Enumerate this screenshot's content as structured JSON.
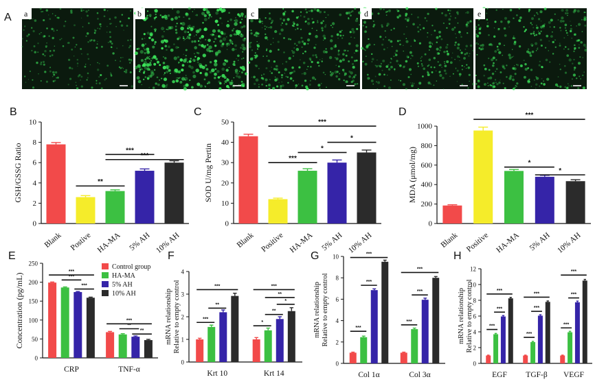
{
  "colors": {
    "red": "#f24a4a",
    "yellow": "#f5ec2a",
    "green": "#3cc042",
    "blue": "#3524a8",
    "black": "#2b2b2b",
    "microscopy_bg": "#0b1a0e",
    "microscopy_spot": "#3ce65a"
  },
  "panel_letters": {
    "A": "A",
    "B": "B",
    "C": "C",
    "D": "D",
    "E": "E",
    "F": "F",
    "G": "G",
    "H": "H"
  },
  "microscopy": {
    "labels": [
      "a",
      "b",
      "c",
      "d",
      "e"
    ],
    "brightness": [
      0.25,
      0.85,
      0.55,
      0.45,
      0.5
    ]
  },
  "chart_data": [
    {
      "id": "B",
      "type": "bar",
      "categories": [
        "Blank",
        "Postive",
        "HA-MA",
        "5% AH",
        "10% AH"
      ],
      "values": [
        7.8,
        2.6,
        3.2,
        5.2,
        6.0
      ],
      "errors": [
        0.18,
        0.15,
        0.12,
        0.18,
        0.18
      ],
      "colors": [
        "red",
        "yellow",
        "green",
        "blue",
        "black"
      ],
      "ylabel": "GSH/GSSG Ratio",
      "ylim": [
        0,
        10
      ],
      "yticks": [
        0,
        2,
        4,
        6,
        8,
        10
      ],
      "significance": [
        {
          "from": 1,
          "to": 2,
          "y": 3.7,
          "label": "**"
        },
        {
          "from": 2,
          "to": 4,
          "y": 6.3,
          "label": "***"
        },
        {
          "from": 2,
          "to": 3,
          "y": 6.8,
          "label": "***"
        }
      ]
    },
    {
      "id": "C",
      "type": "bar",
      "categories": [
        "Blank",
        "Positive",
        "HA-MA",
        "5% AH",
        "10% AH"
      ],
      "values": [
        43,
        12,
        26,
        30,
        35
      ],
      "errors": [
        1.0,
        0.5,
        1.0,
        1.3,
        1.2
      ],
      "colors": [
        "red",
        "yellow",
        "green",
        "blue",
        "black"
      ],
      "ylabel": "SOD U/mg Pertin",
      "ylim": [
        0,
        50
      ],
      "yticks": [
        0,
        10,
        20,
        30,
        40,
        50
      ],
      "significance": [
        {
          "from": 1,
          "to": 2,
          "y": 30,
          "label": "***"
        },
        {
          "from": 2,
          "to": 3,
          "y": 35,
          "label": "*"
        },
        {
          "from": 3,
          "to": 4,
          "y": 40,
          "label": "*"
        },
        {
          "from": 1,
          "to": 4,
          "y": 48,
          "label": "***"
        }
      ]
    },
    {
      "id": "D",
      "type": "bar",
      "categories": [
        "Blank",
        "Positive",
        "HA-MA",
        "5% AH",
        "10% AH"
      ],
      "values": [
        185,
        955,
        540,
        480,
        435
      ],
      "errors": [
        8,
        35,
        15,
        15,
        15
      ],
      "colors": [
        "red",
        "yellow",
        "green",
        "blue",
        "black"
      ],
      "ylabel": "MDA (μmol/mg)",
      "ylim": [
        0,
        1000
      ],
      "yticks": [
        0,
        200,
        400,
        600,
        800,
        1000
      ],
      "significance": [
        {
          "from": 2,
          "to": 3,
          "y": 580,
          "label": "*"
        },
        {
          "from": 3,
          "to": 4,
          "y": 500,
          "label": "*"
        },
        {
          "from": 1,
          "to": 4,
          "y": 1070,
          "label": "***"
        }
      ]
    },
    {
      "id": "E",
      "type": "bar",
      "categories": [
        "CRP",
        "TNF-α"
      ],
      "series": [
        {
          "name": "Control group",
          "color": "red",
          "values": [
            199,
            68
          ],
          "errors": [
            1.5,
            2
          ]
        },
        {
          "name": "HA-MA",
          "color": "green",
          "values": [
            186,
            62
          ],
          "errors": [
            1.5,
            2
          ]
        },
        {
          "name": "5% AH",
          "color": "blue",
          "values": [
            174,
            56
          ],
          "errors": [
            1.5,
            2
          ]
        },
        {
          "name": "10% AH",
          "color": "black",
          "values": [
            159,
            47
          ],
          "errors": [
            1.5,
            2
          ]
        }
      ],
      "ylabel": "Concentration (pg/mL)",
      "ylim": [
        0,
        250
      ],
      "yticks": [
        0,
        50,
        100,
        150,
        200,
        250
      ],
      "significance": [
        {
          "group": 0,
          "from": 0,
          "to": 3,
          "y": 219,
          "label": "***"
        },
        {
          "group": 0,
          "from": 1,
          "to": 2,
          "y": 206,
          "label": "***"
        },
        {
          "group": 0,
          "from": 2,
          "to": 3,
          "y": 182,
          "label": "***"
        },
        {
          "group": 1,
          "from": 0,
          "to": 3,
          "y": 90,
          "label": "***"
        },
        {
          "group": 1,
          "from": 1,
          "to": 2,
          "y": 77,
          "label": "**"
        },
        {
          "group": 1,
          "from": 2,
          "to": 3,
          "y": 63,
          "label": "**"
        }
      ]
    },
    {
      "id": "F",
      "type": "bar",
      "categories": [
        "Krt 10",
        "Krt 14"
      ],
      "series": [
        {
          "name": "Control group",
          "color": "red",
          "values": [
            1.0,
            1.0
          ],
          "errors": [
            0.05,
            0.08
          ]
        },
        {
          "name": "HA-MA",
          "color": "green",
          "values": [
            1.55,
            1.4
          ],
          "errors": [
            0.08,
            0.1
          ]
        },
        {
          "name": "5% AH",
          "color": "blue",
          "values": [
            2.2,
            1.9
          ],
          "errors": [
            0.1,
            0.1
          ]
        },
        {
          "name": "10% AH",
          "color": "black",
          "values": [
            2.92,
            2.25
          ],
          "errors": [
            0.12,
            0.15
          ]
        }
      ],
      "ylabel": [
        "mRNA relationship",
        "Relative to empty control"
      ],
      "ylim": [
        0,
        4
      ],
      "yticks": [
        0,
        1,
        2,
        3,
        4
      ],
      "significance": [
        {
          "group": 0,
          "from": 0,
          "to": 1,
          "y": 1.75,
          "label": "***"
        },
        {
          "group": 0,
          "from": 1,
          "to": 2,
          "y": 2.38,
          "label": "**"
        },
        {
          "group": 0,
          "from": 0,
          "to": 3,
          "y": 3.2,
          "label": "***"
        },
        {
          "group": 1,
          "from": 0,
          "to": 1,
          "y": 1.6,
          "label": "*"
        },
        {
          "group": 1,
          "from": 1,
          "to": 2,
          "y": 2.1,
          "label": "**"
        },
        {
          "group": 1,
          "from": 2,
          "to": 3,
          "y": 2.55,
          "label": "*"
        },
        {
          "group": 1,
          "from": 1,
          "to": 3,
          "y": 2.85,
          "label": "**"
        },
        {
          "group": 1,
          "from": 0,
          "to": 3,
          "y": 3.2,
          "label": "***"
        }
      ]
    },
    {
      "id": "G",
      "type": "bar",
      "categories": [
        "Col 1α",
        "Col 3α"
      ],
      "series": [
        {
          "name": "Control group",
          "color": "red",
          "values": [
            1.0,
            1.0
          ],
          "errors": [
            0.05,
            0.05
          ]
        },
        {
          "name": "HA-MA",
          "color": "green",
          "values": [
            2.45,
            3.2
          ],
          "errors": [
            0.1,
            0.1
          ]
        },
        {
          "name": "5% AH",
          "color": "blue",
          "values": [
            6.85,
            5.95
          ],
          "errors": [
            0.12,
            0.15
          ]
        },
        {
          "name": "10% AH",
          "color": "black",
          "values": [
            9.5,
            8.0
          ],
          "errors": [
            0.15,
            0.12
          ]
        }
      ],
      "ylabel": [
        "mRNA relationship",
        "Relative to empty control"
      ],
      "ylim": [
        0,
        10
      ],
      "yticks": [
        0,
        2,
        4,
        6,
        8,
        10
      ],
      "significance": [
        {
          "group": 0,
          "from": 0,
          "to": 1,
          "y": 3.0,
          "label": "***"
        },
        {
          "group": 0,
          "from": 1,
          "to": 2,
          "y": 7.3,
          "label": "***"
        },
        {
          "group": 0,
          "from": 0,
          "to": 3,
          "y": 9.9,
          "label": "***"
        },
        {
          "group": 1,
          "from": 0,
          "to": 1,
          "y": 3.6,
          "label": "***"
        },
        {
          "group": 1,
          "from": 1,
          "to": 2,
          "y": 6.4,
          "label": "***"
        },
        {
          "group": 1,
          "from": 0,
          "to": 3,
          "y": 8.5,
          "label": "***"
        }
      ]
    },
    {
      "id": "H",
      "type": "bar",
      "categories": [
        "EGF",
        "TGF-β",
        "VEGF"
      ],
      "series": [
        {
          "name": "Control group",
          "color": "red",
          "values": [
            1.0,
            1.0,
            1.0
          ],
          "errors": [
            0.05,
            0.05,
            0.05
          ]
        },
        {
          "name": "HA-MA",
          "color": "green",
          "values": [
            3.7,
            2.7,
            3.95
          ],
          "errors": [
            0.1,
            0.1,
            0.12
          ]
        },
        {
          "name": "5% AH",
          "color": "blue",
          "values": [
            5.95,
            6.05,
            7.75
          ],
          "errors": [
            0.12,
            0.12,
            0.15
          ]
        },
        {
          "name": "10% AH",
          "color": "black",
          "values": [
            8.25,
            7.8,
            10.5
          ],
          "errors": [
            0.12,
            0.12,
            0.15
          ]
        }
      ],
      "ylabel": [
        "mRNA relationship",
        "Relative to empty control"
      ],
      "ylim": [
        0,
        12
      ],
      "yticks": [
        0,
        2,
        4,
        6,
        8,
        10,
        12
      ],
      "significance": [
        {
          "group": 0,
          "from": 0,
          "to": 1,
          "y": 4.3,
          "label": "***"
        },
        {
          "group": 0,
          "from": 1,
          "to": 2,
          "y": 6.5,
          "label": "***"
        },
        {
          "group": 0,
          "from": 0,
          "to": 3,
          "y": 8.8,
          "label": "***"
        },
        {
          "group": 1,
          "from": 0,
          "to": 1,
          "y": 3.3,
          "label": "***"
        },
        {
          "group": 1,
          "from": 1,
          "to": 2,
          "y": 6.6,
          "label": "***"
        },
        {
          "group": 1,
          "from": 0,
          "to": 3,
          "y": 8.4,
          "label": "***"
        },
        {
          "group": 2,
          "from": 0,
          "to": 1,
          "y": 4.5,
          "label": "***"
        },
        {
          "group": 2,
          "from": 1,
          "to": 2,
          "y": 8.3,
          "label": "***"
        },
        {
          "group": 2,
          "from": 0,
          "to": 3,
          "y": 11.2,
          "label": "***"
        }
      ]
    }
  ]
}
